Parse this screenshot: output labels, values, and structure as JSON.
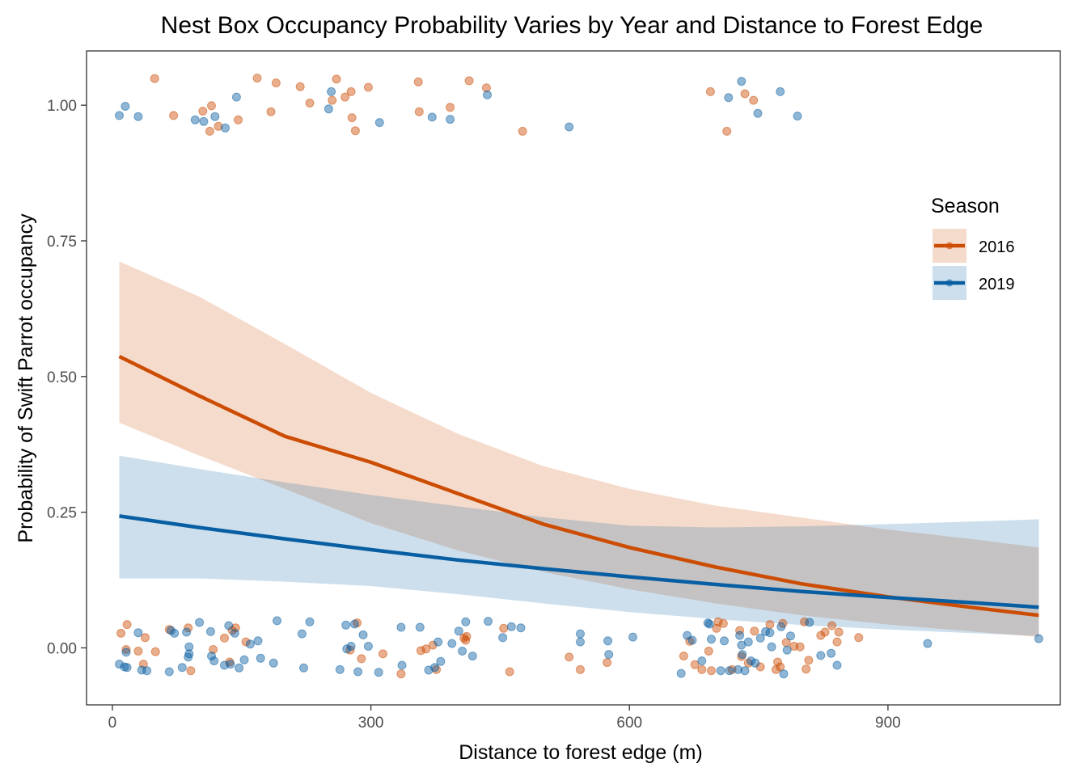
{
  "chart_data": {
    "type": "line",
    "title": "Nest Box Occupancy Probability Varies by Year and Distance to Forest Edge",
    "xlabel": "Distance to forest edge (m)",
    "ylabel": "Probability of Swift Parrot occupancy",
    "xlim": [
      -30,
      1100
    ],
    "ylim": [
      -0.105,
      1.1
    ],
    "x_ticks": [
      0,
      300,
      600,
      900
    ],
    "x_tick_labels": [
      "0",
      "300",
      "600",
      "900"
    ],
    "y_ticks": [
      0,
      0.25,
      0.5,
      0.75,
      1.0
    ],
    "y_tick_labels": [
      "0.00",
      "0.25",
      "0.50",
      "0.75",
      "1.00"
    ],
    "grid": false,
    "legend": {
      "title": "Season",
      "placement": "right"
    },
    "series": [
      {
        "name": "2016",
        "color": "#cc4c02",
        "ribbon_color": "#f4d4c4",
        "x": [
          8,
          100,
          200,
          300,
          400,
          500,
          600,
          700,
          800,
          900,
          1000,
          1075
        ],
        "y": [
          0.537,
          0.465,
          0.39,
          0.342,
          0.285,
          0.228,
          0.185,
          0.149,
          0.118,
          0.094,
          0.074,
          0.06
        ],
        "lower": [
          0.415,
          0.355,
          0.293,
          0.23,
          0.18,
          0.14,
          0.108,
          0.082,
          0.06,
          0.043,
          0.03,
          0.02
        ],
        "upper": [
          0.712,
          0.648,
          0.56,
          0.47,
          0.395,
          0.335,
          0.293,
          0.262,
          0.24,
          0.218,
          0.2,
          0.185
        ]
      },
      {
        "name": "2019",
        "color": "#075ea2",
        "ribbon_color": "#c8dbe9",
        "x": [
          8,
          100,
          200,
          300,
          400,
          500,
          600,
          700,
          800,
          900,
          1000,
          1075
        ],
        "y": [
          0.243,
          0.222,
          0.201,
          0.181,
          0.162,
          0.146,
          0.131,
          0.117,
          0.104,
          0.093,
          0.083,
          0.075
        ],
        "lower": [
          0.128,
          0.128,
          0.122,
          0.114,
          0.099,
          0.082,
          0.066,
          0.053,
          0.042,
          0.034,
          0.027,
          0.022
        ],
        "upper": [
          0.354,
          0.33,
          0.305,
          0.282,
          0.261,
          0.241,
          0.225,
          0.222,
          0.224,
          0.228,
          0.233,
          0.237
        ]
      }
    ],
    "points": [
      {
        "series": "2016",
        "x": 10,
        "y": 0.027
      },
      {
        "series": "2016",
        "x": 17,
        "y": 0.043
      },
      {
        "series": "2016",
        "x": 16,
        "y": -0.003
      },
      {
        "series": "2016",
        "x": 30,
        "y": -0.006
      },
      {
        "series": "2016",
        "x": 36,
        "y": -0.03
      },
      {
        "series": "2016",
        "x": 38,
        "y": 0.019
      },
      {
        "series": "2016",
        "x": 50,
        "y": -0.007
      },
      {
        "series": "2016",
        "x": 66,
        "y": 0.034
      },
      {
        "series": "2016",
        "x": 88,
        "y": 0.037
      },
      {
        "series": "2016",
        "x": 91,
        "y": -0.042
      },
      {
        "series": "2016",
        "x": 117,
        "y": -0.003
      },
      {
        "series": "2016",
        "x": 130,
        "y": 0.018
      },
      {
        "series": "2016",
        "x": 136,
        "y": -0.026
      },
      {
        "series": "2016",
        "x": 139,
        "y": 0.032
      },
      {
        "series": "2016",
        "x": 143,
        "y": 0.037
      },
      {
        "series": "2016",
        "x": 155,
        "y": 0.011
      },
      {
        "series": "2016",
        "x": 276,
        "y": -0.004
      },
      {
        "series": "2016",
        "x": 284,
        "y": 0.046
      },
      {
        "series": "2016",
        "x": 289,
        "y": -0.02
      },
      {
        "series": "2016",
        "x": 314,
        "y": -0.011
      },
      {
        "series": "2016",
        "x": 335,
        "y": -0.048
      },
      {
        "series": "2016",
        "x": 358,
        "y": -0.005
      },
      {
        "series": "2016",
        "x": 364,
        "y": -0.002
      },
      {
        "series": "2016",
        "x": 372,
        "y": 0.005
      },
      {
        "series": "2016",
        "x": 376,
        "y": -0.04
      },
      {
        "series": "2016",
        "x": 408,
        "y": 0.018
      },
      {
        "series": "2016",
        "x": 410,
        "y": 0.014
      },
      {
        "series": "2016",
        "x": 411,
        "y": 0.021
      },
      {
        "series": "2016",
        "x": 454,
        "y": 0.036
      },
      {
        "series": "2016",
        "x": 461,
        "y": -0.044
      },
      {
        "series": "2016",
        "x": 530,
        "y": -0.017
      },
      {
        "series": "2016",
        "x": 543,
        "y": -0.04
      },
      {
        "series": "2016",
        "x": 574,
        "y": -0.027
      },
      {
        "series": "2016",
        "x": 663,
        "y": -0.015
      },
      {
        "series": "2016",
        "x": 670,
        "y": 0.012
      },
      {
        "series": "2016",
        "x": 676,
        "y": -0.031
      },
      {
        "series": "2016",
        "x": 684,
        "y": -0.04
      },
      {
        "series": "2016",
        "x": 692,
        "y": -0.006
      },
      {
        "series": "2016",
        "x": 695,
        "y": -0.042
      },
      {
        "series": "2016",
        "x": 701,
        "y": 0.036
      },
      {
        "series": "2016",
        "x": 703,
        "y": 0.048
      },
      {
        "series": "2016",
        "x": 709,
        "y": 0.045
      },
      {
        "series": "2016",
        "x": 719,
        "y": -0.04
      },
      {
        "series": "2016",
        "x": 728,
        "y": 0.032
      },
      {
        "series": "2016",
        "x": 730,
        "y": -0.016
      },
      {
        "series": "2016",
        "x": 738,
        "y": -0.028
      },
      {
        "series": "2016",
        "x": 745,
        "y": 0.031
      },
      {
        "series": "2016",
        "x": 752,
        "y": -0.035
      },
      {
        "series": "2016",
        "x": 763,
        "y": 0.043
      },
      {
        "series": "2016",
        "x": 770,
        "y": -0.04
      },
      {
        "series": "2016",
        "x": 772,
        "y": -0.026
      },
      {
        "series": "2016",
        "x": 775,
        "y": -0.035
      },
      {
        "series": "2016",
        "x": 778,
        "y": 0.045
      },
      {
        "series": "2016",
        "x": 782,
        "y": 0.01
      },
      {
        "series": "2016",
        "x": 791,
        "y": 0.003
      },
      {
        "series": "2016",
        "x": 798,
        "y": 0.002
      },
      {
        "series": "2016",
        "x": 803,
        "y": 0.048
      },
      {
        "series": "2016",
        "x": 805,
        "y": -0.039
      },
      {
        "series": "2016",
        "x": 808,
        "y": -0.023
      },
      {
        "series": "2016",
        "x": 822,
        "y": 0.023
      },
      {
        "series": "2016",
        "x": 827,
        "y": 0.029
      },
      {
        "series": "2016",
        "x": 835,
        "y": 0.041
      },
      {
        "series": "2016",
        "x": 841,
        "y": 0.011
      },
      {
        "series": "2016",
        "x": 843,
        "y": 0.029
      },
      {
        "series": "2016",
        "x": 866,
        "y": 0.019
      },
      {
        "series": "2016",
        "x": 49,
        "y": 1.049
      },
      {
        "series": "2016",
        "x": 71,
        "y": 0.981
      },
      {
        "series": "2016",
        "x": 105,
        "y": 0.989
      },
      {
        "series": "2016",
        "x": 113,
        "y": 0.952
      },
      {
        "series": "2016",
        "x": 115,
        "y": 0.999
      },
      {
        "series": "2016",
        "x": 123,
        "y": 0.961
      },
      {
        "series": "2016",
        "x": 146,
        "y": 0.973
      },
      {
        "series": "2016",
        "x": 168,
        "y": 1.05
      },
      {
        "series": "2016",
        "x": 184,
        "y": 0.988
      },
      {
        "series": "2016",
        "x": 190,
        "y": 1.041
      },
      {
        "series": "2016",
        "x": 218,
        "y": 1.034
      },
      {
        "series": "2016",
        "x": 229,
        "y": 1.004
      },
      {
        "series": "2016",
        "x": 255,
        "y": 1.009
      },
      {
        "series": "2016",
        "x": 260,
        "y": 1.048
      },
      {
        "series": "2016",
        "x": 270,
        "y": 1.015
      },
      {
        "series": "2016",
        "x": 277,
        "y": 1.025
      },
      {
        "series": "2016",
        "x": 278,
        "y": 0.977
      },
      {
        "series": "2016",
        "x": 282,
        "y": 0.953
      },
      {
        "series": "2016",
        "x": 297,
        "y": 1.033
      },
      {
        "series": "2016",
        "x": 355,
        "y": 1.043
      },
      {
        "series": "2016",
        "x": 356,
        "y": 0.988
      },
      {
        "series": "2016",
        "x": 392,
        "y": 0.996
      },
      {
        "series": "2016",
        "x": 414,
        "y": 1.045
      },
      {
        "series": "2016",
        "x": 434,
        "y": 1.032
      },
      {
        "series": "2016",
        "x": 476,
        "y": 0.952
      },
      {
        "series": "2016",
        "x": 694,
        "y": 1.025
      },
      {
        "series": "2016",
        "x": 713,
        "y": 0.952
      },
      {
        "series": "2016",
        "x": 734,
        "y": 1.021
      },
      {
        "series": "2016",
        "x": 744,
        "y": 1.009
      },
      {
        "series": "2019",
        "x": 8,
        "y": -0.03
      },
      {
        "series": "2019",
        "x": 14,
        "y": -0.035
      },
      {
        "series": "2019",
        "x": 16,
        "y": -0.008
      },
      {
        "series": "2019",
        "x": 17,
        "y": -0.036
      },
      {
        "series": "2019",
        "x": 30,
        "y": 0.028
      },
      {
        "series": "2019",
        "x": 34,
        "y": -0.041
      },
      {
        "series": "2019",
        "x": 40,
        "y": -0.042
      },
      {
        "series": "2019",
        "x": 66,
        "y": -0.044
      },
      {
        "series": "2019",
        "x": 68,
        "y": 0.032
      },
      {
        "series": "2019",
        "x": 72,
        "y": 0.027
      },
      {
        "series": "2019",
        "x": 81,
        "y": -0.036
      },
      {
        "series": "2019",
        "x": 86,
        "y": 0.029
      },
      {
        "series": "2019",
        "x": 88,
        "y": -0.017
      },
      {
        "series": "2019",
        "x": 89,
        "y": 0.002
      },
      {
        "series": "2019",
        "x": 89,
        "y": -0.011
      },
      {
        "series": "2019",
        "x": 101,
        "y": 0.047
      },
      {
        "series": "2019",
        "x": 114,
        "y": 0.03
      },
      {
        "series": "2019",
        "x": 115,
        "y": -0.015
      },
      {
        "series": "2019",
        "x": 118,
        "y": -0.024
      },
      {
        "series": "2019",
        "x": 130,
        "y": -0.032
      },
      {
        "series": "2019",
        "x": 135,
        "y": 0.041
      },
      {
        "series": "2019",
        "x": 137,
        "y": -0.03
      },
      {
        "series": "2019",
        "x": 142,
        "y": 0.027
      },
      {
        "series": "2019",
        "x": 147,
        "y": -0.037
      },
      {
        "series": "2019",
        "x": 153,
        "y": -0.022
      },
      {
        "series": "2019",
        "x": 160,
        "y": 0.007
      },
      {
        "series": "2019",
        "x": 169,
        "y": 0.013
      },
      {
        "series": "2019",
        "x": 172,
        "y": -0.019
      },
      {
        "series": "2019",
        "x": 187,
        "y": -0.028
      },
      {
        "series": "2019",
        "x": 191,
        "y": 0.05
      },
      {
        "series": "2019",
        "x": 220,
        "y": 0.026
      },
      {
        "series": "2019",
        "x": 222,
        "y": -0.037
      },
      {
        "series": "2019",
        "x": 229,
        "y": 0.048
      },
      {
        "series": "2019",
        "x": 264,
        "y": -0.04
      },
      {
        "series": "2019",
        "x": 271,
        "y": 0.042
      },
      {
        "series": "2019",
        "x": 272,
        "y": -0.002
      },
      {
        "series": "2019",
        "x": 277,
        "y": 0.003
      },
      {
        "series": "2019",
        "x": 281,
        "y": 0.044
      },
      {
        "series": "2019",
        "x": 285,
        "y": -0.044
      },
      {
        "series": "2019",
        "x": 291,
        "y": 0.024
      },
      {
        "series": "2019",
        "x": 297,
        "y": 0.003
      },
      {
        "series": "2019",
        "x": 309,
        "y": -0.045
      },
      {
        "series": "2019",
        "x": 335,
        "y": 0.038
      },
      {
        "series": "2019",
        "x": 336,
        "y": -0.032
      },
      {
        "series": "2019",
        "x": 357,
        "y": 0.038
      },
      {
        "series": "2019",
        "x": 367,
        "y": -0.041
      },
      {
        "series": "2019",
        "x": 374,
        "y": -0.036
      },
      {
        "series": "2019",
        "x": 378,
        "y": 0.011
      },
      {
        "series": "2019",
        "x": 381,
        "y": -0.025
      },
      {
        "series": "2019",
        "x": 394,
        "y": 0.008
      },
      {
        "series": "2019",
        "x": 402,
        "y": 0.031
      },
      {
        "series": "2019",
        "x": 406,
        "y": -0.006
      },
      {
        "series": "2019",
        "x": 410,
        "y": 0.048
      },
      {
        "series": "2019",
        "x": 418,
        "y": -0.015
      },
      {
        "series": "2019",
        "x": 436,
        "y": 0.049
      },
      {
        "series": "2019",
        "x": 453,
        "y": 0.019
      },
      {
        "series": "2019",
        "x": 463,
        "y": 0.039
      },
      {
        "series": "2019",
        "x": 474,
        "y": 0.037
      },
      {
        "series": "2019",
        "x": 543,
        "y": 0.026
      },
      {
        "series": "2019",
        "x": 543,
        "y": 0.011
      },
      {
        "series": "2019",
        "x": 575,
        "y": 0.013
      },
      {
        "series": "2019",
        "x": 576,
        "y": -0.012
      },
      {
        "series": "2019",
        "x": 604,
        "y": 0.02
      },
      {
        "series": "2019",
        "x": 660,
        "y": -0.047
      },
      {
        "series": "2019",
        "x": 667,
        "y": 0.023
      },
      {
        "series": "2019",
        "x": 673,
        "y": 0.014
      },
      {
        "series": "2019",
        "x": 684,
        "y": -0.024
      },
      {
        "series": "2019",
        "x": 691,
        "y": 0.046
      },
      {
        "series": "2019",
        "x": 693,
        "y": 0.044
      },
      {
        "series": "2019",
        "x": 695,
        "y": 0.016
      },
      {
        "series": "2019",
        "x": 706,
        "y": -0.042
      },
      {
        "series": "2019",
        "x": 710,
        "y": 0.013
      },
      {
        "series": "2019",
        "x": 716,
        "y": -0.042
      },
      {
        "series": "2019",
        "x": 726,
        "y": -0.04
      },
      {
        "series": "2019",
        "x": 728,
        "y": 0.023
      },
      {
        "series": "2019",
        "x": 730,
        "y": 0.005
      },
      {
        "series": "2019",
        "x": 731,
        "y": -0.012
      },
      {
        "series": "2019",
        "x": 734,
        "y": -0.042
      },
      {
        "series": "2019",
        "x": 738,
        "y": 0.011
      },
      {
        "series": "2019",
        "x": 741,
        "y": -0.024
      },
      {
        "series": "2019",
        "x": 746,
        "y": -0.028
      },
      {
        "series": "2019",
        "x": 752,
        "y": 0.018
      },
      {
        "series": "2019",
        "x": 758,
        "y": 0.03
      },
      {
        "series": "2019",
        "x": 763,
        "y": 0.028
      },
      {
        "series": "2019",
        "x": 765,
        "y": 0.002
      },
      {
        "series": "2019",
        "x": 776,
        "y": 0.039
      },
      {
        "series": "2019",
        "x": 779,
        "y": -0.048
      },
      {
        "series": "2019",
        "x": 783,
        "y": -0.004
      },
      {
        "series": "2019",
        "x": 787,
        "y": 0.022
      },
      {
        "series": "2019",
        "x": 809,
        "y": 0.047
      },
      {
        "series": "2019",
        "x": 822,
        "y": -0.014
      },
      {
        "series": "2019",
        "x": 834,
        "y": -0.01
      },
      {
        "series": "2019",
        "x": 841,
        "y": -0.032
      },
      {
        "series": "2019",
        "x": 946,
        "y": 0.008
      },
      {
        "series": "2019",
        "x": 1075,
        "y": 0.017
      },
      {
        "series": "2019",
        "x": 8,
        "y": 0.981
      },
      {
        "series": "2019",
        "x": 15,
        "y": 0.998
      },
      {
        "series": "2019",
        "x": 30,
        "y": 0.979
      },
      {
        "series": "2019",
        "x": 96,
        "y": 0.973
      },
      {
        "series": "2019",
        "x": 106,
        "y": 0.97
      },
      {
        "series": "2019",
        "x": 119,
        "y": 0.979
      },
      {
        "series": "2019",
        "x": 131,
        "y": 0.958
      },
      {
        "series": "2019",
        "x": 144,
        "y": 1.015
      },
      {
        "series": "2019",
        "x": 251,
        "y": 0.993
      },
      {
        "series": "2019",
        "x": 254,
        "y": 1.025
      },
      {
        "series": "2019",
        "x": 310,
        "y": 0.968
      },
      {
        "series": "2019",
        "x": 371,
        "y": 0.978
      },
      {
        "series": "2019",
        "x": 392,
        "y": 0.974
      },
      {
        "series": "2019",
        "x": 435,
        "y": 1.019
      },
      {
        "series": "2019",
        "x": 530,
        "y": 0.96
      },
      {
        "series": "2019",
        "x": 715,
        "y": 1.014
      },
      {
        "series": "2019",
        "x": 730,
        "y": 1.044
      },
      {
        "series": "2019",
        "x": 749,
        "y": 0.985
      },
      {
        "series": "2019",
        "x": 775,
        "y": 1.025
      },
      {
        "series": "2019",
        "x": 795,
        "y": 0.98
      }
    ]
  }
}
